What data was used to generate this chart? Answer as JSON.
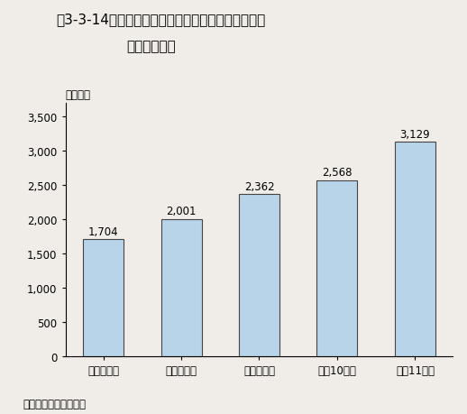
{
  "title_line1": "第3-3-14図　国立大学等と民間等との共同研究の実",
  "title_line2": "施件数の推移",
  "ylabel": "（件数）",
  "source": "資料：文部科学省調べ",
  "categories": [
    "平成７年度",
    "平成８年度",
    "平成９年度",
    "平成10年度",
    "平成11年度"
  ],
  "values": [
    1704,
    2001,
    2362,
    2568,
    3129
  ],
  "bar_color": "#b8d4e8",
  "bar_edge_color": "#444444",
  "ylim": [
    0,
    3700
  ],
  "yticks": [
    0,
    500,
    1000,
    1500,
    2000,
    2500,
    3000,
    3500
  ],
  "ytick_labels": [
    "0",
    "500",
    "1,000",
    "1,500",
    "2,000",
    "2,500",
    "3,000",
    "3,500"
  ],
  "value_labels": [
    "1,704",
    "2,001",
    "2,362",
    "2,568",
    "3,129"
  ],
  "background_color": "#f0ede8",
  "title_fontsize": 11,
  "tick_fontsize": 8.5,
  "label_fontsize": 8.5,
  "value_fontsize": 8.5,
  "source_fontsize": 8.5
}
